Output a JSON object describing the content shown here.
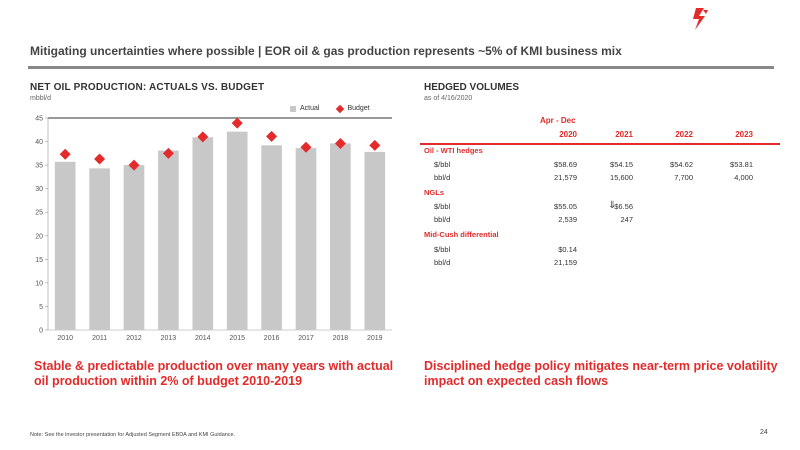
{
  "subtitle": "Mitigating uncertainties where possible | EOR oil & gas production represents ~5% of KMI business mix",
  "left_panel": {
    "title": "NET OIL PRODUCTION: ACTUALS VS. BUDGET",
    "unit": "mbbl/d",
    "legend_actual": "Actual",
    "legend_budget": "Budget",
    "callout": "Stable & predictable production over many years with actual oil production within 2% of budget 2010-2019"
  },
  "chart_data": {
    "type": "bar",
    "categories": [
      "2010",
      "2011",
      "2012",
      "2013",
      "2014",
      "2015",
      "2016",
      "2017",
      "2018",
      "2019"
    ],
    "series": [
      {
        "name": "Actual",
        "values": [
          35.7,
          34.3,
          35.0,
          38.1,
          40.9,
          42.1,
          39.2,
          38.6,
          39.6,
          37.8
        ],
        "color": "#c8c8c8"
      },
      {
        "name": "Budget",
        "values": [
          37.3,
          36.3,
          35.0,
          37.5,
          41.0,
          43.9,
          41.1,
          38.8,
          39.6,
          39.2
        ],
        "color": "#e32b2b"
      }
    ],
    "yticks": [
      "0",
      "5",
      "10",
      "15",
      "20",
      "25",
      "30",
      "35",
      "40",
      "45"
    ],
    "ylim": [
      0,
      45
    ],
    "grid": false
  },
  "hedged": {
    "title": "HEDGED VOLUMES",
    "asof": "as of 4/16/2020",
    "period_label": "Apr - Dec",
    "years": [
      "2020",
      "2021",
      "2022",
      "2023"
    ],
    "sections": [
      {
        "name": "Oil - WTI hedges",
        "rows": [
          {
            "label": "$/bbl",
            "values": [
              "$58.69",
              "$54.15",
              "$54.62",
              "$53.81"
            ]
          },
          {
            "label": "bbl/d",
            "values": [
              "21,579",
              "15,600",
              "7,700",
              "4,000"
            ]
          }
        ]
      },
      {
        "name": "NGLs",
        "rows": [
          {
            "label": "$/bbl",
            "values": [
              "$55.05",
              "$6.56",
              "",
              ""
            ]
          },
          {
            "label": "bbl/d",
            "values": [
              "2,539",
              "247",
              "",
              ""
            ]
          }
        ]
      },
      {
        "name": "Mid-Cush differential",
        "rows": [
          {
            "label": "$/bbl",
            "values": [
              "$0.14",
              "",
              "",
              ""
            ]
          },
          {
            "label": "bbl/d",
            "values": [
              "21,159",
              "",
              "",
              ""
            ]
          }
        ]
      }
    ],
    "arrow_glyph": "⇓",
    "callout": "Disciplined hedge policy mitigates near-term price volatility impact on expected cash flows"
  },
  "footnote": "Note: See the investor presentation for Adjusted Segment EBDA and KMI Guidance.",
  "page_number": "24"
}
